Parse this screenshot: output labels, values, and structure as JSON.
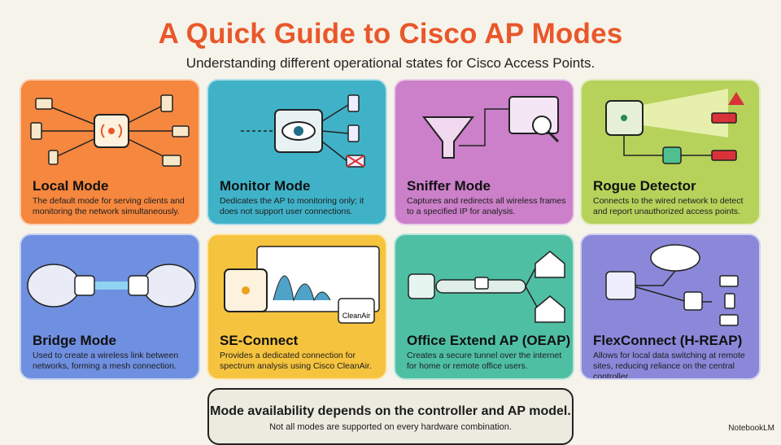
{
  "header": {
    "title": "A Quick Guide to Cisco AP Modes",
    "subtitle": "Understanding different operational states for Cisco Access Points."
  },
  "cards": [
    {
      "title": "Local Mode",
      "description": "The default mode for serving clients and monitoring the network simultaneously.",
      "color": "#f5873f"
    },
    {
      "title": "Monitor Mode",
      "description": "Dedicates the AP to monitoring only; it does not support user connections.",
      "color": "#3fb2c8"
    },
    {
      "title": "Sniffer Mode",
      "description": "Captures and redirects all wireless frames to a specified IP for analysis.",
      "color": "#cb80c9"
    },
    {
      "title": "Rogue Detector",
      "description": "Connects to the wired network to detect and report unauthorized access points.",
      "color": "#b6d25b"
    },
    {
      "title": "Bridge Mode",
      "description": "Used to create a wireless link between networks, forming a mesh connection.",
      "color": "#6f8fe0"
    },
    {
      "title": "SE-Connect",
      "description": "Provides a dedicated connection for spectrum analysis using Cisco CleanAir.",
      "color": "#f5c33e",
      "badge": "CleanAir"
    },
    {
      "title": "Office Extend AP (OEAP)",
      "description": "Creates a secure tunnel over the internet for home or remote office users.",
      "color": "#4fbfa4"
    },
    {
      "title": "FlexConnect (H-REAP)",
      "description": "Allows for local data switching at remote sites, reducing reliance on the central controller.",
      "color": "#8b88da"
    }
  ],
  "footer": {
    "main": "Mode availability depends on the controller and AP model.",
    "sub": "Not all modes are supported on every hardware combination."
  },
  "brand": "NotebookLM"
}
